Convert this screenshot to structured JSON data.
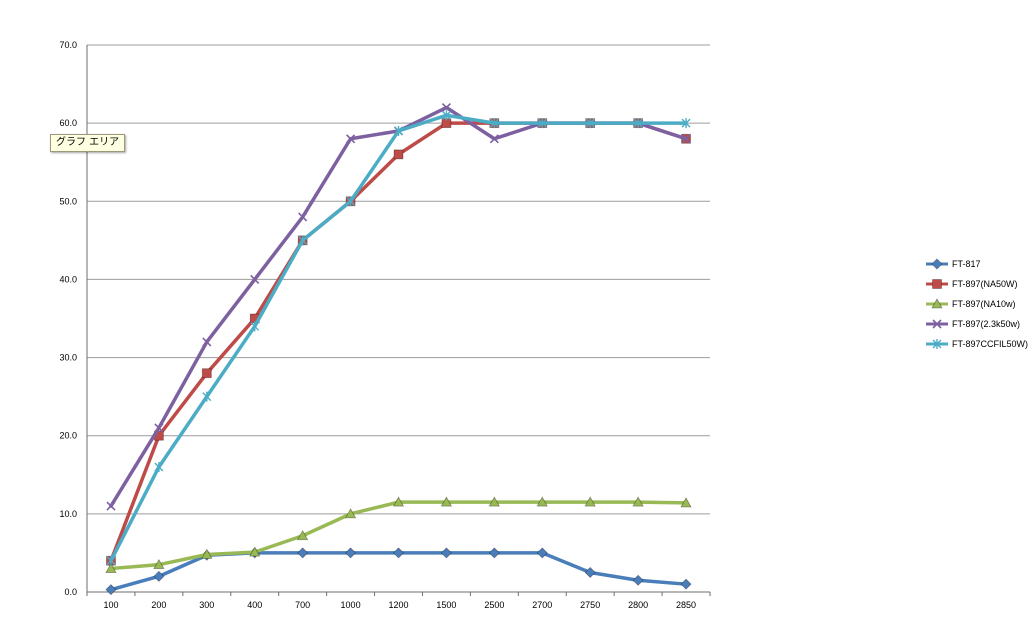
{
  "chart_data": {
    "type": "line",
    "title": "",
    "xlabel": "",
    "ylabel": "",
    "categories": [
      "100",
      "200",
      "300",
      "400",
      "700",
      "1000",
      "1200",
      "1500",
      "2500",
      "2700",
      "2750",
      "2800",
      "2850"
    ],
    "ylim": [
      0,
      70
    ],
    "yticks": [
      "0.0",
      "10.0",
      "20.0",
      "30.0",
      "40.0",
      "50.0",
      "60.0",
      "70.0"
    ],
    "grid": true,
    "legend_position": "right",
    "series": [
      {
        "name": "FT-817",
        "color": "#4a7ebb",
        "marker": "diamond",
        "values": [
          0.3,
          2.0,
          4.7,
          5.0,
          5.0,
          5.0,
          5.0,
          5.0,
          5.0,
          5.0,
          2.5,
          1.5,
          1.0
        ]
      },
      {
        "name": "FT-897(NA50W)",
        "color": "#be4b48",
        "marker": "square",
        "values": [
          4.0,
          20.0,
          28.0,
          35.0,
          45.0,
          50.0,
          56.0,
          60.0,
          60.0,
          60.0,
          60.0,
          60.0,
          58.0
        ]
      },
      {
        "name": "FT-897(NA10w)",
        "color": "#98b954",
        "marker": "triangle",
        "values": [
          3.0,
          3.5,
          4.8,
          5.1,
          7.2,
          10.0,
          11.5,
          11.5,
          11.5,
          11.5,
          11.5,
          11.5,
          11.4
        ]
      },
      {
        "name": "FT-897(2.3k50w)",
        "color": "#7d60a0",
        "marker": "x",
        "values": [
          11.0,
          21.0,
          32.0,
          40.0,
          48.0,
          58.0,
          59.0,
          62.0,
          58.0,
          60.0,
          60.0,
          60.0,
          58.0
        ]
      },
      {
        "name": "FT-897CCFIL50W)",
        "color": "#4bacc6",
        "marker": "star",
        "values": [
          4.0,
          16.0,
          25.0,
          34.0,
          45.0,
          50.0,
          59.0,
          61.0,
          60.0,
          60.0,
          60.0,
          60.0,
          60.0
        ]
      }
    ]
  },
  "tooltip": {
    "text": "グラフ エリア"
  }
}
